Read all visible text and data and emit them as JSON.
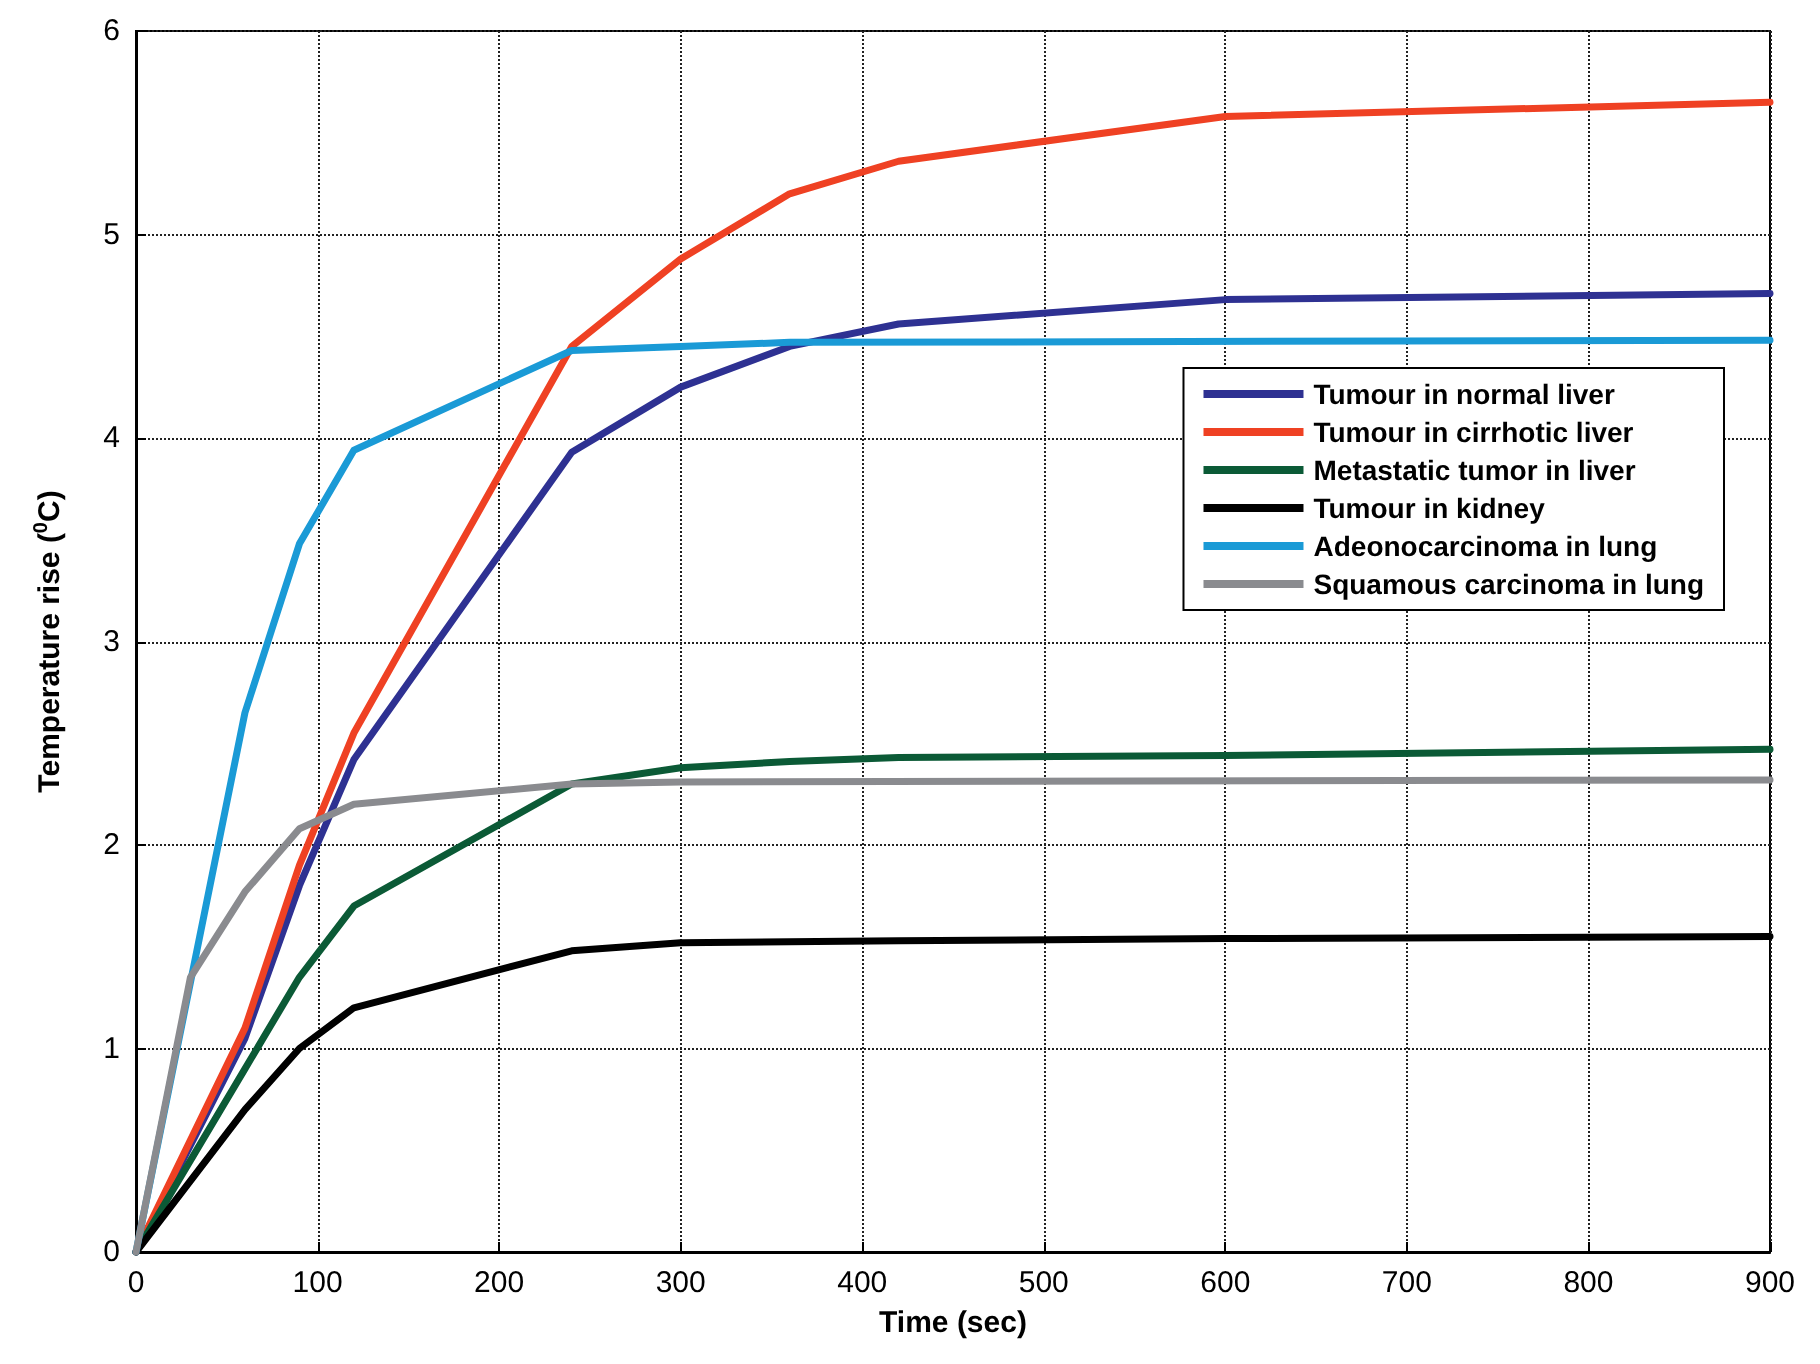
{
  "chart_data": {
    "type": "line",
    "xlabel": "Time (sec)",
    "ylabel": "Temperature rise ($^{0}$C)",
    "xlim": [
      0,
      900
    ],
    "xticks": [
      0,
      100,
      200,
      300,
      400,
      500,
      600,
      700,
      800,
      900
    ],
    "ylim": [
      0,
      6
    ],
    "yticks": [
      0,
      1,
      2,
      3,
      4,
      5,
      6
    ],
    "grid": true,
    "legend": "right",
    "marker": "none",
    "line_style": "solid",
    "series": [
      {
        "name": "Tumour in normal liver",
        "color": "#2e3192",
        "x": [
          0,
          60,
          90,
          120,
          240,
          300,
          360,
          420,
          600,
          900
        ],
        "values": [
          0,
          1.05,
          1.8,
          2.42,
          3.93,
          4.25,
          4.45,
          4.56,
          4.68,
          4.71
        ]
      },
      {
        "name": "Tumour in cirrhotic liver",
        "color": "#ef4123",
        "x": [
          0,
          60,
          90,
          120,
          240,
          300,
          360,
          420,
          600,
          900
        ],
        "values": [
          0,
          1.1,
          1.9,
          2.55,
          4.45,
          4.88,
          5.2,
          5.36,
          5.58,
          5.65
        ]
      },
      {
        "name": "Metastatic tumor in liver",
        "color": "#0b5a36",
        "x": [
          0,
          60,
          90,
          120,
          240,
          300,
          360,
          420,
          600,
          900
        ],
        "values": [
          0,
          0.9,
          1.35,
          1.7,
          2.3,
          2.38,
          2.41,
          2.43,
          2.44,
          2.47
        ]
      },
      {
        "name": "Tumour in kidney",
        "color": "#000000",
        "x": [
          0,
          60,
          90,
          120,
          240,
          300,
          420,
          600,
          900
        ],
        "values": [
          0,
          0.7,
          1.0,
          1.2,
          1.48,
          1.52,
          1.53,
          1.54,
          1.55
        ]
      },
      {
        "name": "Adeonocarcinoma in lung",
        "color": "#1a9ad6",
        "x": [
          0,
          60,
          90,
          120,
          240,
          300,
          360,
          900
        ],
        "values": [
          0,
          2.65,
          3.48,
          3.94,
          4.43,
          4.45,
          4.47,
          4.48
        ]
      },
      {
        "name": "Squamous carcinoma in lung",
        "color": "#8a8b8f",
        "x": [
          0,
          30,
          60,
          90,
          120,
          240,
          300,
          900
        ],
        "values": [
          0,
          1.35,
          1.77,
          2.08,
          2.2,
          2.3,
          2.31,
          2.32
        ]
      }
    ]
  }
}
